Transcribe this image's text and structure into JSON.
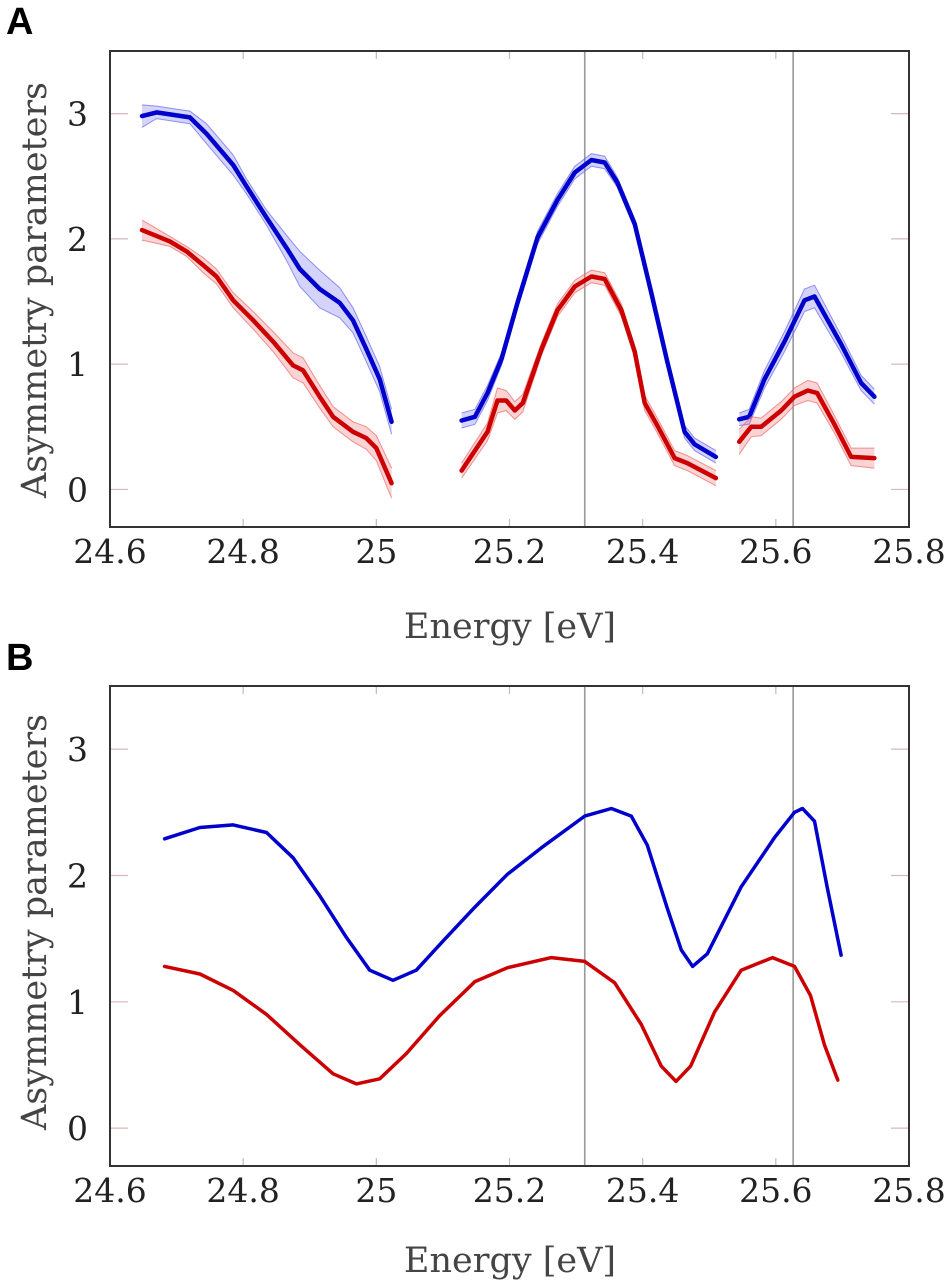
{
  "chart_data": [
    {
      "type": "line",
      "panel_label": "A",
      "xlabel": "Energy [eV]",
      "ylabel": "Asymmetry parameters",
      "xlim": [
        24.6,
        25.8
      ],
      "ylim": [
        -0.3,
        3.5
      ],
      "xticks": [
        24.6,
        24.8,
        25.0,
        25.2,
        25.4,
        25.6,
        25.8
      ],
      "xtick_labels": [
        "24.6",
        "24.8",
        "25",
        "25.2",
        "25.4",
        "25.6",
        "25.8"
      ],
      "yticks": [
        0,
        1,
        2,
        3
      ],
      "ytick_labels": [
        "0",
        "1",
        "2",
        "3"
      ],
      "vlines": [
        25.313,
        25.626
      ],
      "grid": false,
      "series": [
        {
          "color": "#0000cc",
          "band_color": "#6666ee",
          "segments": [
            {
              "x": [
                24.648,
                24.67,
                24.72,
                24.745,
                24.785,
                24.805,
                24.835,
                24.865,
                24.885,
                24.915,
                24.945,
                24.965,
                24.985,
                25.005,
                25.023
              ],
              "y": [
                2.98,
                3.01,
                2.97,
                2.84,
                2.59,
                2.42,
                2.17,
                1.93,
                1.76,
                1.6,
                1.49,
                1.35,
                1.12,
                0.88,
                0.54
              ],
              "err": [
                0.09,
                0.05,
                0.05,
                0.08,
                0.08,
                0.06,
                0.06,
                0.1,
                0.14,
                0.15,
                0.12,
                0.1,
                0.1,
                0.1,
                0.1
              ]
            },
            {
              "x": [
                25.128,
                25.148,
                25.167,
                25.188,
                25.212,
                25.242,
                25.272,
                25.298,
                25.323,
                25.343,
                25.362,
                25.388,
                25.413,
                25.437,
                25.463,
                25.478,
                25.51
              ],
              "y": [
                0.55,
                0.58,
                0.77,
                1.04,
                1.49,
                2.01,
                2.31,
                2.53,
                2.63,
                2.61,
                2.45,
                2.12,
                1.57,
                1.02,
                0.46,
                0.36,
                0.26
              ],
              "err": [
                0.06,
                0.06,
                0.06,
                0.05,
                0.05,
                0.05,
                0.05,
                0.05,
                0.05,
                0.05,
                0.04,
                0.04,
                0.04,
                0.04,
                0.05,
                0.05,
                0.05
              ]
            },
            {
              "x": [
                25.545,
                25.56,
                25.583,
                25.613,
                25.643,
                25.658,
                25.698,
                25.728,
                25.748
              ],
              "y": [
                0.56,
                0.58,
                0.88,
                1.18,
                1.51,
                1.54,
                1.16,
                0.85,
                0.74
              ],
              "err": [
                0.05,
                0.06,
                0.07,
                0.08,
                0.09,
                0.09,
                0.07,
                0.06,
                0.06
              ]
            }
          ]
        },
        {
          "color": "#cc0000",
          "band_color": "#ee6666",
          "segments": [
            {
              "x": [
                24.648,
                24.69,
                24.715,
                24.74,
                24.76,
                24.785,
                24.815,
                24.845,
                24.875,
                24.89,
                24.915,
                24.935,
                24.965,
                24.985,
                25.0,
                25.023
              ],
              "y": [
                2.07,
                1.98,
                1.9,
                1.79,
                1.7,
                1.51,
                1.35,
                1.18,
                0.99,
                0.95,
                0.74,
                0.58,
                0.46,
                0.41,
                0.33,
                0.05
              ],
              "err": [
                0.08,
                0.04,
                0.04,
                0.06,
                0.06,
                0.06,
                0.07,
                0.08,
                0.1,
                0.1,
                0.09,
                0.08,
                0.08,
                0.09,
                0.1,
                0.12
              ]
            },
            {
              "x": [
                25.128,
                25.167,
                25.182,
                25.195,
                25.208,
                25.22,
                25.248,
                25.272,
                25.298,
                25.323,
                25.343,
                25.368,
                25.388,
                25.403,
                25.423,
                25.448,
                25.467,
                25.51
              ],
              "y": [
                0.15,
                0.46,
                0.71,
                0.71,
                0.63,
                0.69,
                1.12,
                1.43,
                1.62,
                1.7,
                1.68,
                1.43,
                1.1,
                0.69,
                0.5,
                0.25,
                0.21,
                0.09
              ],
              "err": [
                0.06,
                0.07,
                0.1,
                0.08,
                0.07,
                0.07,
                0.05,
                0.05,
                0.05,
                0.05,
                0.05,
                0.05,
                0.05,
                0.06,
                0.06,
                0.06,
                0.06,
                0.06
              ]
            },
            {
              "x": [
                25.545,
                25.563,
                25.578,
                25.608,
                25.628,
                25.648,
                25.662,
                25.688,
                25.713,
                25.748
              ],
              "y": [
                0.38,
                0.5,
                0.5,
                0.63,
                0.74,
                0.79,
                0.77,
                0.52,
                0.26,
                0.25
              ],
              "err": [
                0.1,
                0.08,
                0.07,
                0.07,
                0.07,
                0.08,
                0.08,
                0.07,
                0.07,
                0.08
              ]
            }
          ]
        }
      ]
    },
    {
      "type": "line",
      "panel_label": "B",
      "xlabel": "Energy [eV]",
      "ylabel": "Asymmetry parameters",
      "xlim": [
        24.6,
        25.8
      ],
      "ylim": [
        -0.3,
        3.5
      ],
      "xticks": [
        24.6,
        24.8,
        25.0,
        25.2,
        25.4,
        25.6,
        25.8
      ],
      "xtick_labels": [
        "24.6",
        "24.8",
        "25",
        "25.2",
        "25.4",
        "25.6",
        "25.8"
      ],
      "yticks": [
        0,
        1,
        2,
        3
      ],
      "ytick_labels": [
        "0",
        "1",
        "2",
        "3"
      ],
      "vlines": [
        25.313,
        25.626
      ],
      "grid": false,
      "series": [
        {
          "color": "#0000cc",
          "segments": [
            {
              "x": [
                24.682,
                24.735,
                24.785,
                24.835,
                24.875,
                24.915,
                24.955,
                24.99,
                25.025,
                25.06,
                25.1,
                25.148,
                25.197,
                25.248,
                25.313,
                25.353,
                25.383,
                25.407,
                25.437,
                25.458,
                25.475,
                25.497,
                25.548,
                25.598,
                25.628,
                25.64,
                25.658,
                25.677,
                25.698
              ],
              "y": [
                2.29,
                2.38,
                2.4,
                2.34,
                2.14,
                1.84,
                1.51,
                1.25,
                1.17,
                1.25,
                1.48,
                1.75,
                2.01,
                2.22,
                2.47,
                2.53,
                2.47,
                2.24,
                1.74,
                1.41,
                1.28,
                1.38,
                1.91,
                2.3,
                2.5,
                2.53,
                2.43,
                1.91,
                1.37
              ]
            }
          ]
        },
        {
          "color": "#cc0000",
          "segments": [
            {
              "x": [
                24.682,
                24.735,
                24.785,
                24.835,
                24.885,
                24.935,
                24.97,
                25.005,
                25.045,
                25.095,
                25.148,
                25.197,
                25.263,
                25.313,
                25.358,
                25.398,
                25.428,
                25.45,
                25.472,
                25.508,
                25.548,
                25.595,
                25.628,
                25.652,
                25.673,
                25.693
              ],
              "y": [
                1.28,
                1.22,
                1.09,
                0.9,
                0.66,
                0.43,
                0.35,
                0.39,
                0.59,
                0.89,
                1.16,
                1.27,
                1.35,
                1.32,
                1.15,
                0.82,
                0.49,
                0.37,
                0.49,
                0.92,
                1.25,
                1.35,
                1.28,
                1.05,
                0.66,
                0.38
              ]
            }
          ]
        }
      ]
    }
  ]
}
